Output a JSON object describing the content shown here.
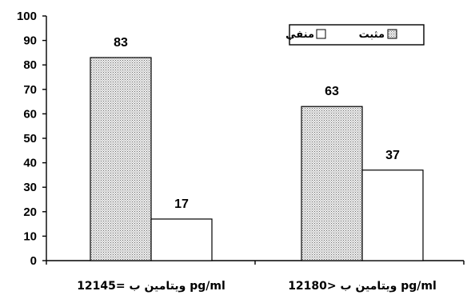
{
  "chart_data": {
    "type": "bar",
    "categories": [
      "12ویتامین ب =145 pg/ml",
      "12ویتامین ب <180 pg/ml"
    ],
    "series": [
      {
        "name": "مثبت",
        "values": [
          83,
          63
        ],
        "color": "#d9d9d9",
        "pattern": "dotted"
      },
      {
        "name": "منفي",
        "values": [
          17,
          37
        ],
        "color": "#ffffff",
        "pattern": "none"
      }
    ],
    "data_labels": [
      [
        "83",
        "63"
      ],
      [
        "17",
        "37"
      ]
    ],
    "ylim": [
      0,
      100
    ],
    "yticks": [
      0,
      10,
      20,
      30,
      40,
      50,
      60,
      70,
      80,
      90,
      100
    ],
    "ytick_labels": [
      "0",
      "10",
      "20",
      "30",
      "40",
      "50",
      "60",
      "70",
      "80",
      "90",
      "100"
    ],
    "grid": false,
    "legend_position": "top-right",
    "title": "",
    "xlabel": "",
    "ylabel": ""
  }
}
